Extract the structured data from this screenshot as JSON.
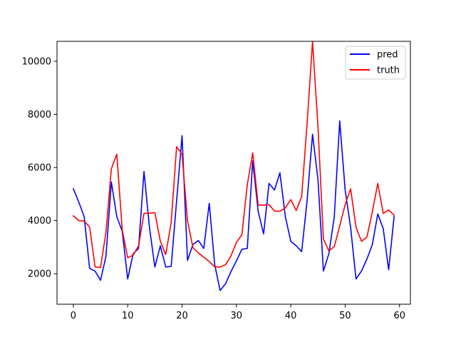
{
  "chart_data": {
    "type": "line",
    "title": "",
    "xlabel": "",
    "ylabel": "",
    "xlim": [
      -3,
      62
    ],
    "ylim": [
      850,
      10750
    ],
    "xticks": [
      0,
      10,
      20,
      30,
      40,
      50,
      60
    ],
    "yticks": [
      2000,
      4000,
      6000,
      8000,
      10000
    ],
    "x_tick_labels": [
      "0",
      "10",
      "20",
      "30",
      "40",
      "50",
      "60"
    ],
    "y_tick_labels": [
      "2000",
      "4000",
      "6000",
      "8000",
      "10000"
    ],
    "grid": false,
    "legend_position": "top-right",
    "x": [
      0,
      1,
      2,
      3,
      4,
      5,
      6,
      7,
      8,
      9,
      10,
      11,
      12,
      13,
      14,
      15,
      16,
      17,
      18,
      19,
      20,
      21,
      22,
      23,
      24,
      25,
      26,
      27,
      28,
      29,
      30,
      31,
      32,
      33,
      34,
      35,
      36,
      37,
      38,
      39,
      40,
      41,
      42,
      43,
      44,
      45,
      46,
      47,
      48,
      49,
      50,
      51,
      52,
      53,
      54,
      55,
      56,
      57,
      58,
      59
    ],
    "series": [
      {
        "name": "pred",
        "color": "#0000ff",
        "values": [
          5200,
          4700,
          4150,
          2200,
          2100,
          1750,
          2650,
          5450,
          4150,
          3600,
          1800,
          2750,
          2950,
          5850,
          3750,
          2250,
          3050,
          2250,
          2280,
          4750,
          7200,
          2500,
          3100,
          3250,
          2950,
          4650,
          2350,
          1370,
          1620,
          2080,
          2480,
          2920,
          2950,
          6250,
          4350,
          3500,
          5400,
          5150,
          5800,
          4150,
          3220,
          3050,
          2830,
          4750,
          7250,
          5550,
          2100,
          2750,
          4150,
          7750,
          5150,
          3750,
          1800,
          2100,
          2550,
          3100,
          4250,
          3700,
          2150,
          4150
        ]
      },
      {
        "name": "truth",
        "color": "#ff0000",
        "values": [
          4180,
          4000,
          3980,
          3760,
          2260,
          2230,
          3550,
          5950,
          6500,
          3650,
          2600,
          2700,
          3050,
          4270,
          4280,
          4300,
          3230,
          2720,
          3930,
          6780,
          6500,
          4000,
          2980,
          2780,
          2620,
          2460,
          2260,
          2250,
          2340,
          2670,
          3180,
          3460,
          5350,
          6550,
          4580,
          4580,
          4600,
          4360,
          4350,
          4480,
          4790,
          4380,
          4900,
          7650,
          10750,
          7550,
          3310,
          2860,
          3020,
          3800,
          4600,
          5200,
          3750,
          3220,
          3380,
          4330,
          5400,
          4270,
          4400,
          4200
        ]
      }
    ]
  }
}
